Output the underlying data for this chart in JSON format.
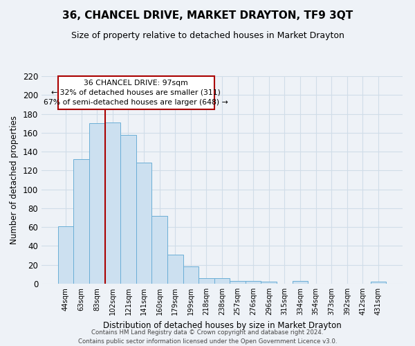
{
  "title": "36, CHANCEL DRIVE, MARKET DRAYTON, TF9 3QT",
  "subtitle": "Size of property relative to detached houses in Market Drayton",
  "xlabel": "Distribution of detached houses by size in Market Drayton",
  "ylabel": "Number of detached properties",
  "bin_labels": [
    "44sqm",
    "63sqm",
    "83sqm",
    "102sqm",
    "121sqm",
    "141sqm",
    "160sqm",
    "179sqm",
    "199sqm",
    "218sqm",
    "238sqm",
    "257sqm",
    "276sqm",
    "296sqm",
    "315sqm",
    "334sqm",
    "354sqm",
    "373sqm",
    "392sqm",
    "412sqm",
    "431sqm"
  ],
  "bar_values": [
    61,
    132,
    170,
    171,
    158,
    128,
    72,
    31,
    18,
    6,
    6,
    3,
    3,
    2,
    0,
    3,
    0,
    0,
    0,
    0,
    2
  ],
  "bar_color": "#cce0f0",
  "bar_edge_color": "#6aaed6",
  "grid_color": "#d0dde8",
  "annotation_line1": "36 CHANCEL DRIVE: 97sqm",
  "annotation_line2": "← 32% of detached houses are smaller (311)",
  "annotation_line3": "67% of semi-detached houses are larger (648) →",
  "vline_color": "#aa0000",
  "vline_x": 3.0,
  "ylim_max": 220,
  "yticks": [
    0,
    20,
    40,
    60,
    80,
    100,
    120,
    140,
    160,
    180,
    200,
    220
  ],
  "footer_line1": "Contains HM Land Registry data © Crown copyright and database right 2024.",
  "footer_line2": "Contains public sector information licensed under the Open Government Licence v3.0.",
  "bg_color": "#eef2f7",
  "title_fontsize": 11,
  "subtitle_fontsize": 9
}
